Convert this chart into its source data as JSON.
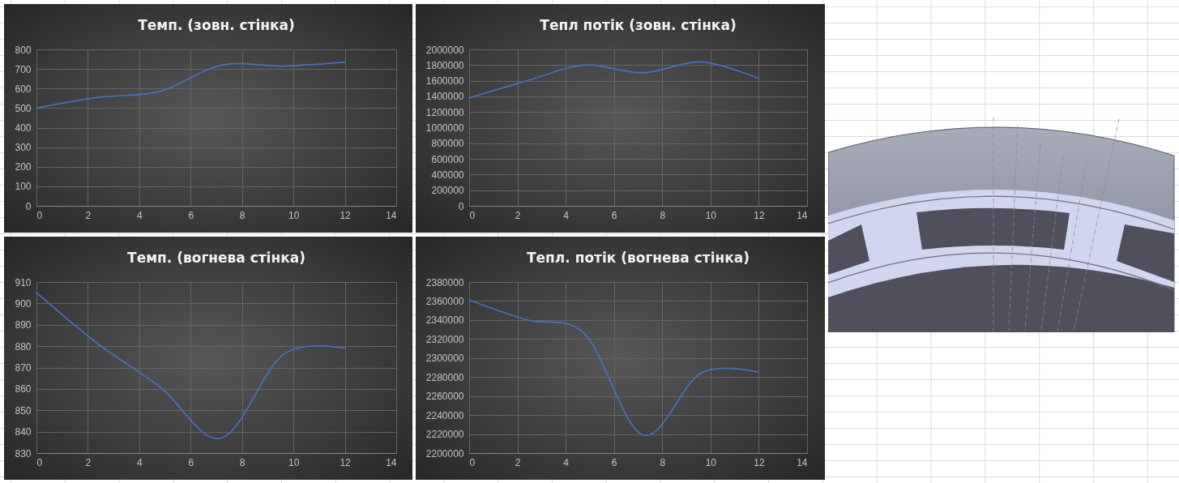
{
  "chart_data": [
    {
      "type": "line",
      "title": "Темп. (зовн. стінка)",
      "x": [
        0,
        2.4,
        4.8,
        7.2,
        9.6,
        12
      ],
      "values": [
        500,
        555,
        585,
        720,
        715,
        735
      ],
      "color": "#4472c4",
      "xlim": [
        0,
        14
      ],
      "xticks": [
        0,
        2,
        4,
        6,
        8,
        10,
        12,
        14
      ],
      "ylim": [
        0,
        800
      ],
      "yticks": [
        0,
        100,
        200,
        300,
        400,
        500,
        600,
        700,
        800
      ],
      "grid": true
    },
    {
      "type": "line",
      "title": "Тепл потік (зовн. стінка)",
      "x": [
        0,
        2.4,
        4.8,
        7.2,
        9.6,
        12
      ],
      "values": [
        1380000,
        1600000,
        1800000,
        1700000,
        1840000,
        1630000
      ],
      "color": "#4472c4",
      "xlim": [
        0,
        14
      ],
      "xticks": [
        0,
        2,
        4,
        6,
        8,
        10,
        12,
        14
      ],
      "ylim": [
        0,
        2000000
      ],
      "yticks": [
        0,
        200000,
        400000,
        600000,
        800000,
        1000000,
        1200000,
        1400000,
        1600000,
        1800000,
        2000000
      ],
      "grid": true
    },
    {
      "type": "line",
      "title": "Темп. (вогнева стінка)",
      "x": [
        0,
        2.4,
        4.8,
        7.2,
        9.6,
        12
      ],
      "values": [
        905,
        881,
        861,
        837,
        876,
        879
      ],
      "color": "#4472c4",
      "xlim": [
        0,
        14
      ],
      "xticks": [
        0,
        2,
        4,
        6,
        8,
        10,
        12,
        14
      ],
      "ylim": [
        830,
        910
      ],
      "yticks": [
        830,
        840,
        850,
        860,
        870,
        880,
        890,
        900,
        910
      ],
      "grid": true
    },
    {
      "type": "line",
      "title": "Тепл. потік (вогнева стінка)",
      "x": [
        0,
        2.4,
        4.8,
        7.2,
        9.6,
        12
      ],
      "values": [
        2361000,
        2340000,
        2325000,
        2219000,
        2284000,
        2285000
      ],
      "color": "#4472c4",
      "xlim": [
        0,
        14
      ],
      "xticks": [
        0,
        2,
        4,
        6,
        8,
        10,
        12,
        14
      ],
      "ylim": [
        2200000,
        2380000
      ],
      "yticks": [
        2200000,
        2220000,
        2240000,
        2260000,
        2280000,
        2300000,
        2320000,
        2340000,
        2360000,
        2380000
      ],
      "grid": true
    }
  ]
}
